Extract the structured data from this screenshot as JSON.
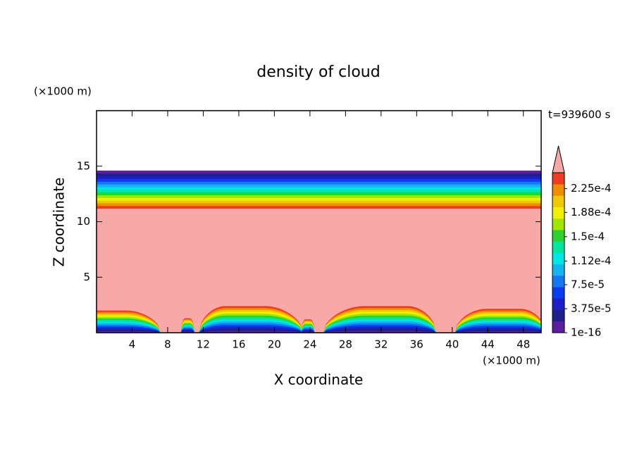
{
  "chart_data": {
    "type": "contour",
    "title": "density of cloud",
    "y_unit": "(×1000 m)",
    "x_unit": "(×1000 m)",
    "x_label": "X coordinate",
    "y_label": "Z coordinate",
    "annotation": "t=939600 s",
    "xlim": [
      0,
      50
    ],
    "ylim": [
      0,
      20
    ],
    "xticks": [
      4,
      8,
      12,
      16,
      20,
      24,
      28,
      32,
      36,
      40,
      44,
      48
    ],
    "yticks": [
      5,
      10,
      15
    ],
    "clim": [
      0,
      0.00025
    ],
    "cticks": [
      {
        "value": 1e-16,
        "label": "1e-16"
      },
      {
        "value": 3.75e-05,
        "label": "3.75e-5"
      },
      {
        "value": 7.5e-05,
        "label": "7.5e-5"
      },
      {
        "value": 0.000112,
        "label": "1.12e-4"
      },
      {
        "value": 0.00015,
        "label": "1.5e-4"
      },
      {
        "value": 0.000188,
        "label": "1.88e-4"
      },
      {
        "value": 0.000225,
        "label": "2.25e-4"
      }
    ],
    "colors": [
      "#5a1ea0",
      "#1e1e8c",
      "#1e1ec8",
      "#0a3cf0",
      "#1478f0",
      "#14b4f0",
      "#00e6e6",
      "#00e6a0",
      "#2ed22e",
      "#a0e600",
      "#f0f000",
      "#f0c800",
      "#f08c00",
      "#f03c1e"
    ],
    "extend_color": "#f9a8a8"
  }
}
